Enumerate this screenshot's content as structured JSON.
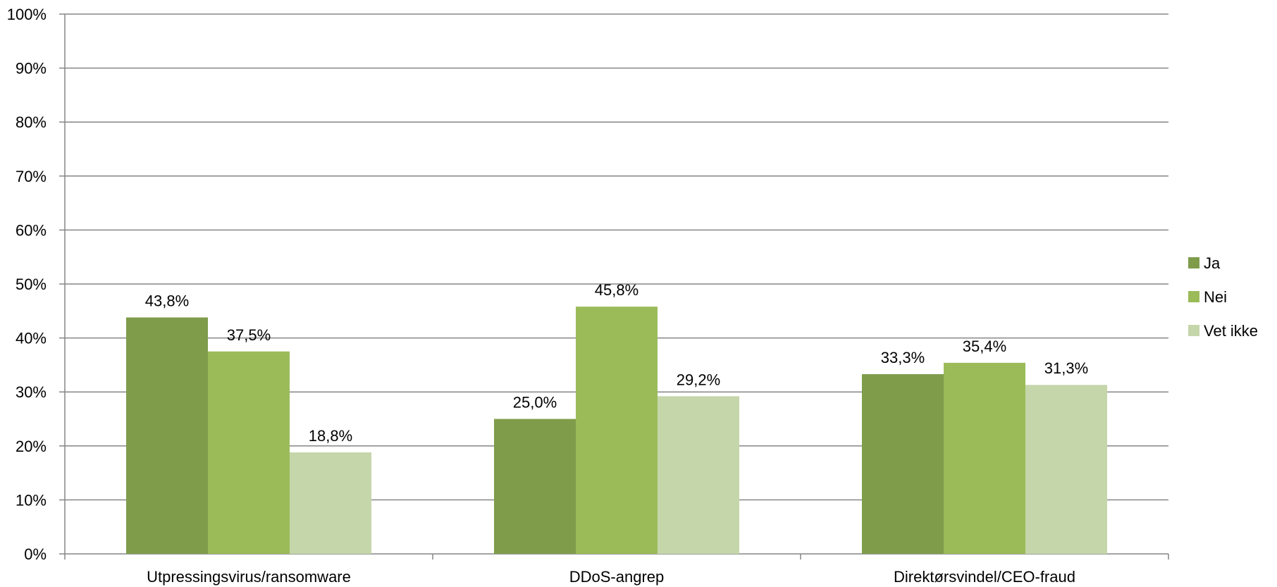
{
  "chart_data": {
    "type": "bar",
    "categories": [
      "Utpressingsvirus/ransomware",
      "DDoS-angrep",
      "Direktørsvindel/CEO-fraud"
    ],
    "series": [
      {
        "name": "Ja",
        "values": [
          43.8,
          25.0,
          33.3
        ],
        "labels": [
          "43,8%",
          "25,0%",
          "33,3%"
        ],
        "color": "#7f9c4b"
      },
      {
        "name": "Nei",
        "values": [
          37.5,
          45.8,
          35.4
        ],
        "labels": [
          "37,5%",
          "45,8%",
          "35,4%"
        ],
        "color": "#9bbb59"
      },
      {
        "name": "Vet ikke",
        "values": [
          18.8,
          29.2,
          31.3
        ],
        "labels": [
          "18,8%",
          "29,2%",
          "31,3%"
        ],
        "color": "#c5d6aa"
      }
    ],
    "yticks": [
      "0%",
      "10%",
      "20%",
      "30%",
      "40%",
      "50%",
      "60%",
      "70%",
      "80%",
      "90%",
      "100%"
    ],
    "ylim": [
      0,
      100
    ],
    "grid": true,
    "legend_position": "right",
    "title": "",
    "xlabel": "",
    "ylabel": ""
  }
}
